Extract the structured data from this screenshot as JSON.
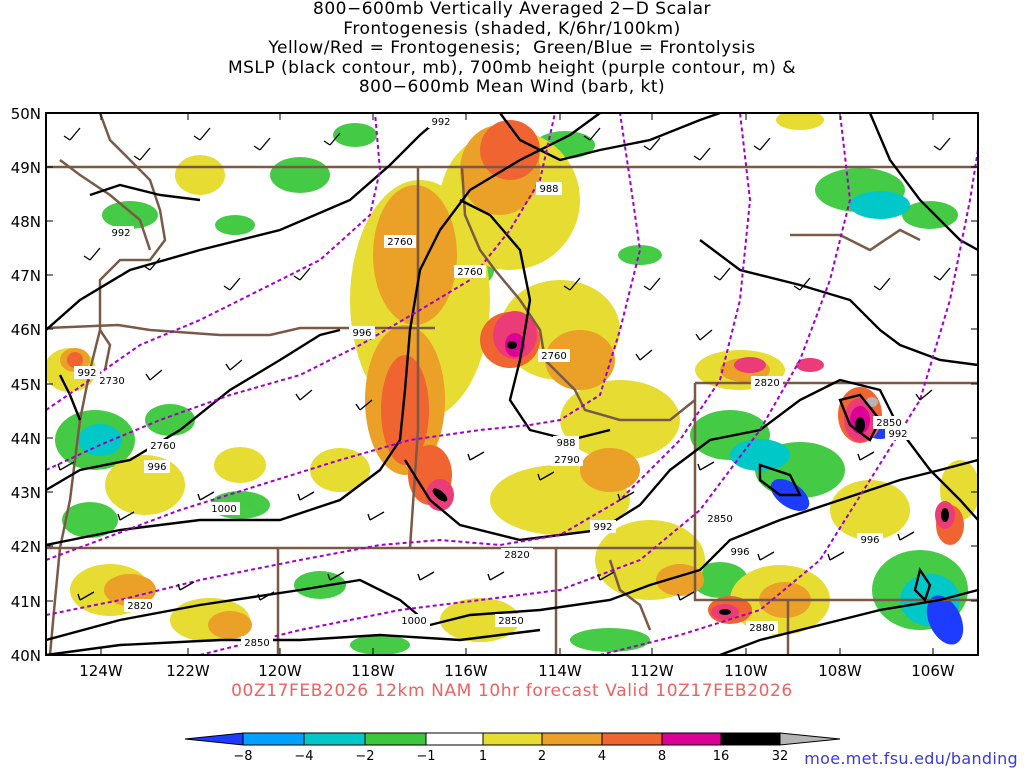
{
  "title_lines": [
    "800−600mb Vertically Averaged 2−D Scalar",
    "Frontogenesis (shaded, K/6hr/100km)",
    "Yellow/Red = Frontogenesis;  Green/Blue = Frontolysis",
    "MSLP (black contour, mb), 700mb height (purple contour, m) &",
    "800−600mb Mean Wind (barb, kt)"
  ],
  "forecast_line": "00Z17FEB2026  12km NAM 10hr forecast Valid 10Z17FEB2026",
  "url": "moe.met.fsu.edu/banding",
  "axes": {
    "lat_labels": [
      "50N",
      "49N",
      "48N",
      "47N",
      "46N",
      "45N",
      "44N",
      "43N",
      "42N",
      "41N",
      "40N"
    ],
    "lon_labels": [
      "124W",
      "122W",
      "120W",
      "118W",
      "116W",
      "114W",
      "112W",
      "110W",
      "108W",
      "106W"
    ]
  },
  "colorbar": {
    "ticks": [
      "−8",
      "−4",
      "−2",
      "−1",
      "1",
      "2",
      "4",
      "8",
      "16",
      "32"
    ],
    "colors": [
      "#1e3cff",
      "#00a0ff",
      "#00c8c8",
      "#00dc96",
      "#3cc83c",
      "#ffffff",
      "#e6dc32",
      "#eba028",
      "#f06432",
      "#eb3c78",
      "#dc0096",
      "#000000",
      "#b4b4b4"
    ]
  },
  "colors": {
    "mslp_contour": "#000000",
    "height_contour": "#a000c8",
    "state_border": "#7a5a46",
    "axis": "#000000"
  },
  "mslp_labels": [
    "992",
    "988",
    "996",
    "992",
    "1000",
    "992",
    "988",
    "992",
    "996",
    "996",
    "1000",
    "996",
    "992"
  ],
  "height_labels": [
    "2760",
    "2760",
    "2730",
    "2760",
    "2790",
    "2760",
    "2820",
    "2820",
    "2850",
    "2850",
    "2850",
    "2880",
    "2820"
  ]
}
